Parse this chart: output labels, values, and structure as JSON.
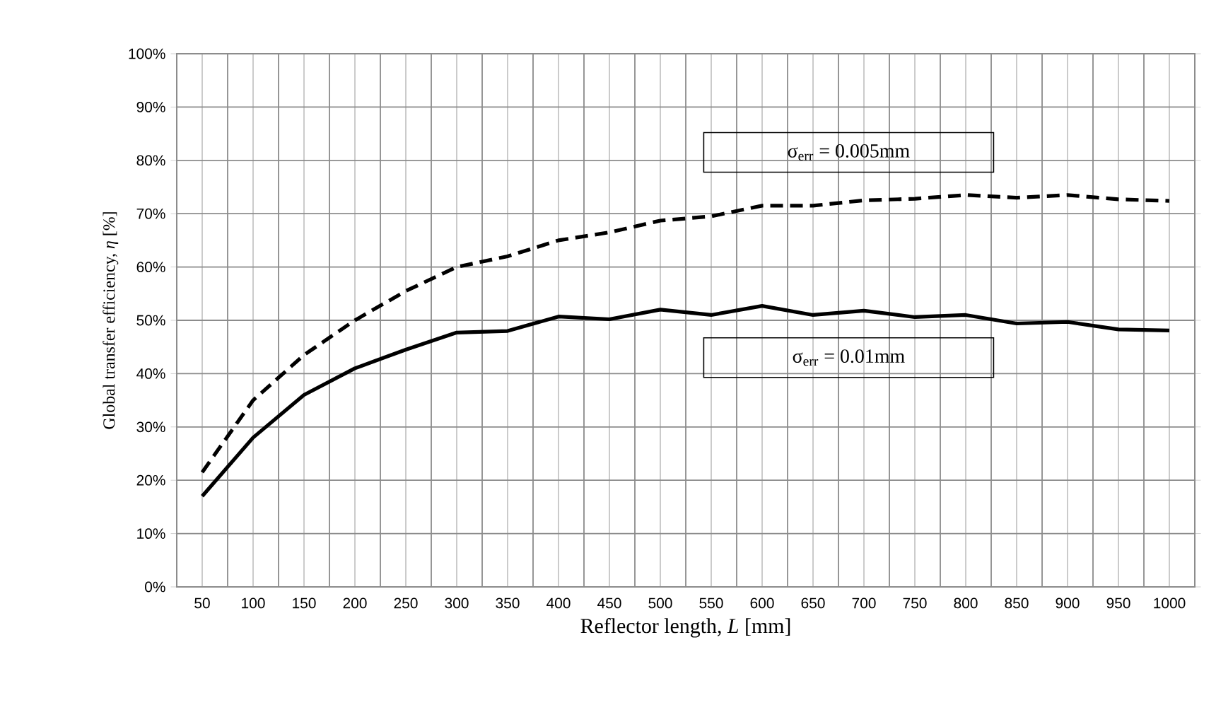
{
  "chart_data": {
    "type": "line",
    "xlabel": "Reflector length, *L* [mm]",
    "ylabel": "Global transfer efficiency, *η* [%]",
    "categories": [
      "50",
      "100",
      "150",
      "200",
      "250",
      "300",
      "350",
      "400",
      "450",
      "500",
      "550",
      "600",
      "650",
      "700",
      "750",
      "800",
      "850",
      "900",
      "950",
      "1000"
    ],
    "series": [
      {
        "name": "σ$_{err}$ = 0.005mm",
        "color": "#000000",
        "line_style": "dashed",
        "values": [
          21.5,
          35,
          43.5,
          50,
          55.5,
          60,
          62,
          65,
          66.5,
          68.7,
          69.5,
          71.5,
          71.5,
          72.5,
          72.8,
          73.5,
          73,
          73.5,
          72.7,
          72.4
        ]
      },
      {
        "name": "σ$_{err}$ = 0.01mm",
        "color": "#000000",
        "line_style": "solid",
        "values": [
          17,
          28,
          36,
          41,
          44.5,
          47.7,
          48,
          50.7,
          50.2,
          52,
          51,
          52.7,
          51,
          51.8,
          50.6,
          51,
          49.4,
          49.7,
          48.3,
          48.1
        ]
      }
    ],
    "ylim": [
      0,
      100
    ],
    "yticks": [
      {
        "value": 0,
        "label": "0%"
      },
      {
        "value": 10,
        "label": "10%"
      },
      {
        "value": 20,
        "label": "20%"
      },
      {
        "value": 30,
        "label": "30%"
      },
      {
        "value": 40,
        "label": "40%"
      },
      {
        "value": 50,
        "label": "50%"
      },
      {
        "value": 60,
        "label": "60%"
      },
      {
        "value": 70,
        "label": "70%"
      },
      {
        "value": 80,
        "label": "80%"
      },
      {
        "value": 90,
        "label": "90%"
      },
      {
        "value": 100,
        "label": "100%"
      }
    ],
    "grid": true
  }
}
